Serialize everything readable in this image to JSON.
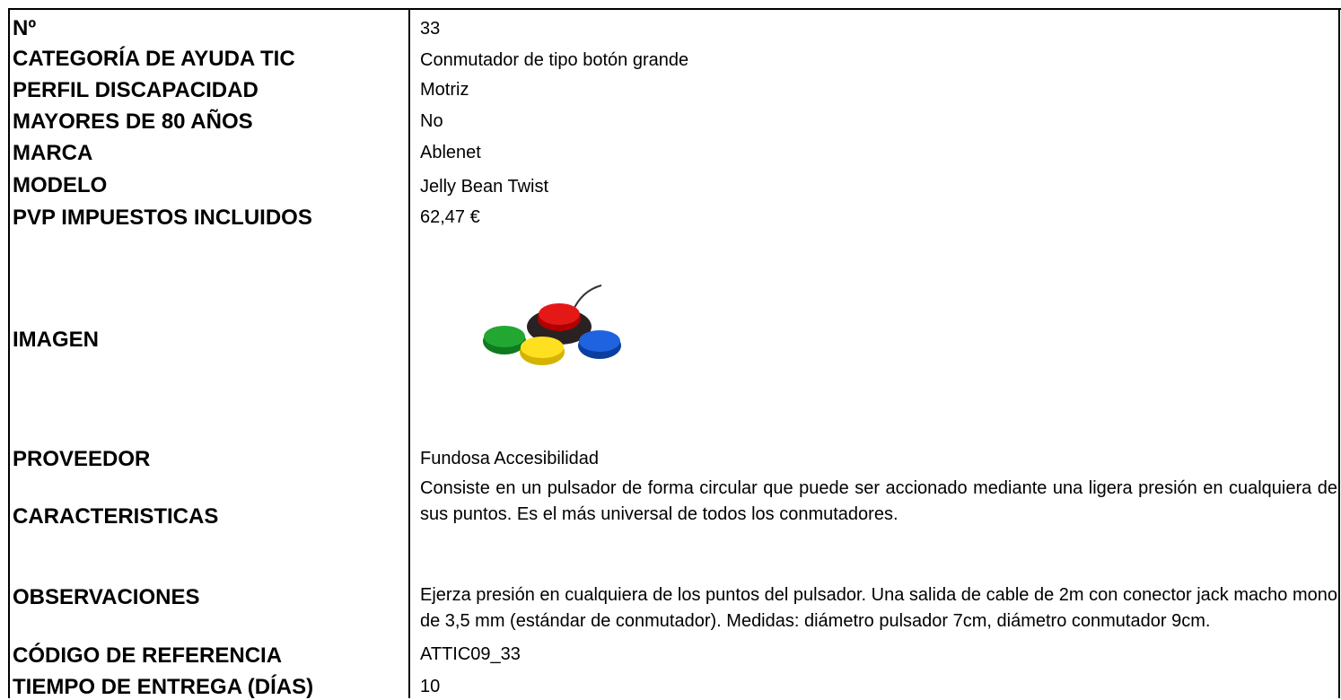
{
  "rows": [
    {
      "label": "Nº",
      "value": "33"
    },
    {
      "label": "CATEGORÍA DE AYUDA TIC",
      "value": "Conmutador de tipo botón grande"
    },
    {
      "label": "PERFIL DISCAPACIDAD",
      "value": "Motriz"
    },
    {
      "label": "MAYORES DE 80 AÑOS",
      "value": "No"
    },
    {
      "label": "MARCA",
      "value": "Ablenet"
    },
    {
      "label": "MODELO",
      "value": "Jelly Bean Twist"
    },
    {
      "label": "PVP IMPUESTOS INCLUIDOS",
      "value": "62,47 €"
    },
    {
      "label": "IMAGEN"
    },
    {
      "label": "PROVEEDOR",
      "value": "Fundosa Accesibilidad"
    },
    {
      "label": "CARACTERISTICAS",
      "value": "Consiste en un pulsador de forma circular que puede ser accionado mediante una ligera presión en cualquiera de sus puntos. Es el más universal de todos los conmutadores."
    },
    {
      "label": "OBSERVACIONES",
      "value": "Ejerza presión en cualquiera de los puntos del pulsador. Una salida de cable de 2m con conector jack macho mono de 3,5 mm (estándar de conmutador). Medidas: diámetro pulsador 7cm, diámetro conmutador 9cm."
    },
    {
      "label": "CÓDIGO DE REFERENCIA",
      "value": "ATTIC09_33"
    },
    {
      "label": "TIEMPO DE ENTREGA (DÍAS)",
      "value": "10"
    }
  ]
}
